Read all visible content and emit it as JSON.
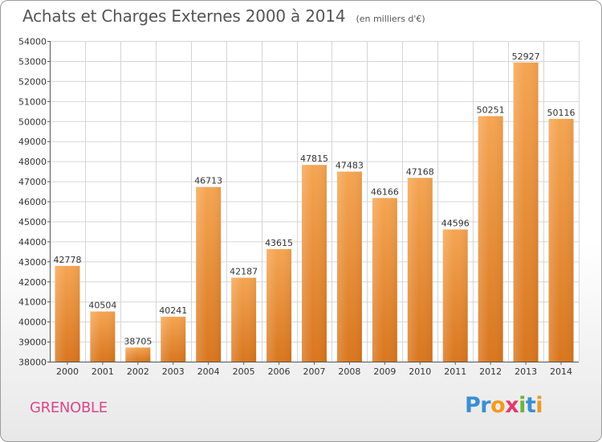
{
  "chart_data": {
    "type": "bar",
    "title": "Achats et Charges Externes 2000 à 2014",
    "subtitle": "(en milliers d'€)",
    "xlabel": "",
    "ylabel": "",
    "categories": [
      "2000",
      "2001",
      "2002",
      "2003",
      "2004",
      "2005",
      "2006",
      "2007",
      "2008",
      "2009",
      "2010",
      "2011",
      "2012",
      "2013",
      "2014"
    ],
    "values": [
      42778,
      40504,
      38705,
      40241,
      46713,
      42187,
      43615,
      47815,
      47483,
      46166,
      47168,
      44596,
      50251,
      52927,
      50116
    ],
    "ylim": [
      38000,
      54000
    ],
    "yticks": [
      38000,
      39000,
      40000,
      41000,
      42000,
      43000,
      44000,
      45000,
      46000,
      47000,
      48000,
      49000,
      50000,
      51000,
      52000,
      53000,
      54000
    ],
    "grid": true,
    "legend": "none",
    "bar_color_top": "#f5a552",
    "bar_color_bottom": "#d9761e"
  },
  "footer": {
    "city": "GRENOBLE",
    "city_color": "#d44a8e",
    "brand_letters": [
      {
        "char": "P",
        "color": "#3a8fd1"
      },
      {
        "char": "r",
        "color": "#3a8fd1"
      },
      {
        "char": "o",
        "color": "#f19a1f"
      },
      {
        "char": "x",
        "color": "#e23b6b"
      },
      {
        "char": "i",
        "color": "#6db33f"
      },
      {
        "char": "t",
        "color": "#3a8fd1"
      },
      {
        "char": "i",
        "color": "#e89b2a"
      }
    ]
  }
}
